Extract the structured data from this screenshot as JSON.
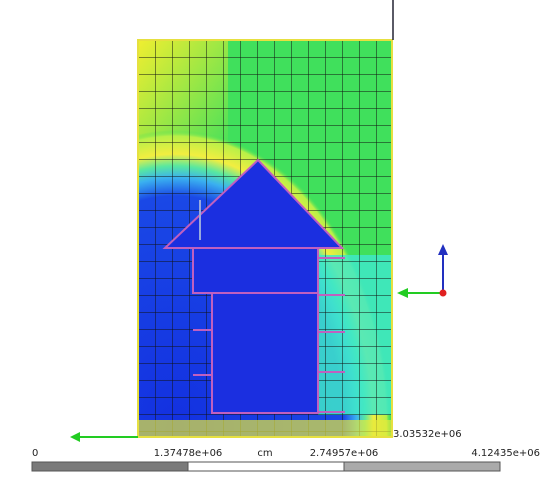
{
  "scale_bar": {
    "labels": [
      "0",
      "1.37478e+06",
      "2.74957e+06",
      "4.12435e+06"
    ],
    "unit": "cm"
  },
  "corner_label": "3.03532e+06"
}
